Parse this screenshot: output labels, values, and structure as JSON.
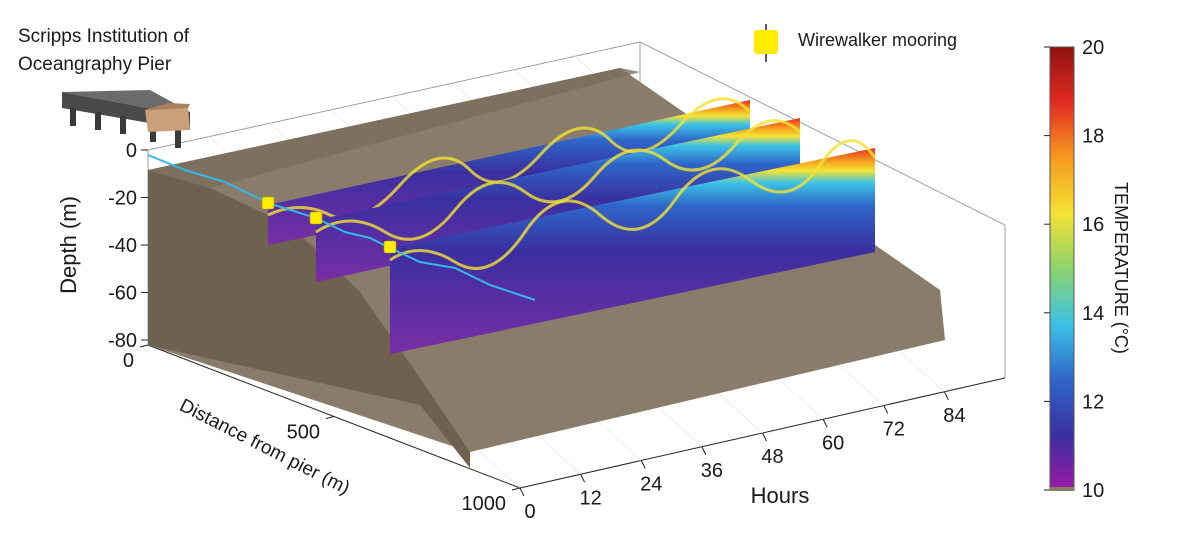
{
  "chart_data": {
    "type": "heatmap",
    "title": "",
    "annotation": "Scripps Institution of\nOceangraphy Pier",
    "legend": {
      "label": "Wirewalker mooring",
      "marker_color": "#ffec00",
      "placement": "top-right"
    },
    "axes": {
      "x": {
        "label": "Hours",
        "ticks": [
          0,
          12,
          24,
          36,
          48,
          60,
          72,
          84
        ]
      },
      "y": {
        "label": "Distance from pier (m)",
        "ticks": [
          0,
          500,
          1000
        ]
      },
      "z": {
        "label": "Depth (m)",
        "ticks": [
          0,
          -20,
          -40,
          -60,
          -80
        ],
        "range": [
          -80,
          0
        ]
      }
    },
    "colorbar": {
      "label": "TEMPERATURE (°C)",
      "ticks": [
        10,
        12,
        14,
        16,
        18,
        20
      ],
      "range": [
        10,
        20
      ],
      "colormap": [
        "#9c1aa6",
        "#3a2fa0",
        "#2f66c9",
        "#3cc2e6",
        "#8ed36b",
        "#f4e233",
        "#f59a1f",
        "#e32a22",
        "#8f1212"
      ]
    },
    "moorings": [
      {
        "distance_m": 150,
        "depth_m": -20
      },
      {
        "distance_m": 250,
        "depth_m": -27
      },
      {
        "distance_m": 400,
        "depth_m": -38
      }
    ],
    "seabed_color": "#8a7c6a",
    "cable_color": "#33b8e8"
  }
}
